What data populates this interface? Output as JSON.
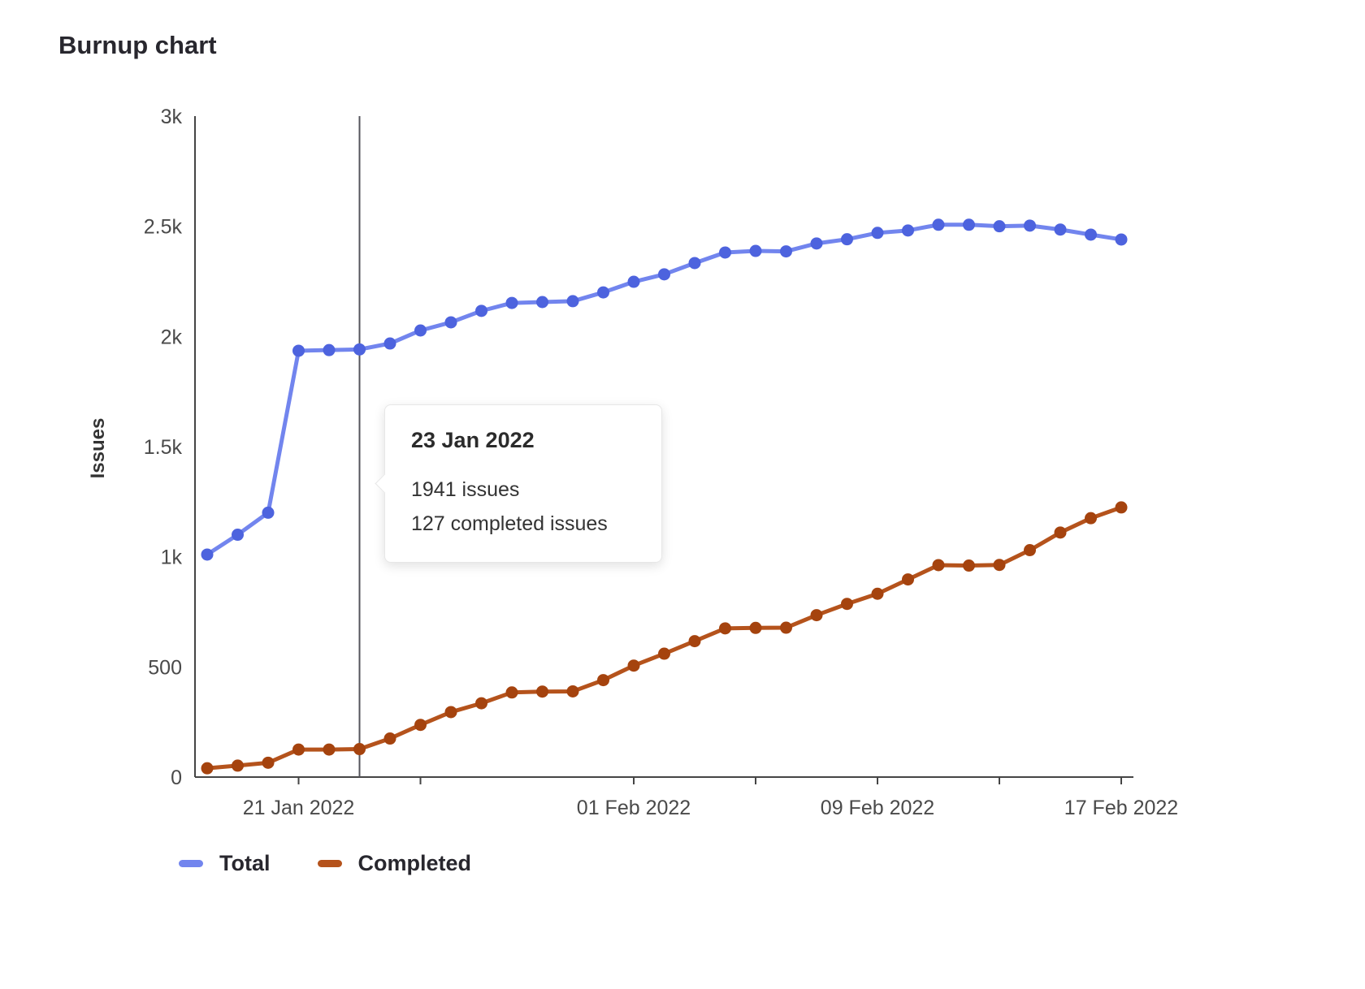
{
  "chart_data": {
    "type": "line",
    "title": "Burnup chart",
    "xlabel": "",
    "ylabel": "Issues",
    "ylim": [
      0,
      3000
    ],
    "grid": false,
    "legend_position": "bottom",
    "y_ticks": [
      "0",
      "500",
      "1k",
      "1.5k",
      "2k",
      "2.5k",
      "3k"
    ],
    "x_ticks": [
      {
        "index": 3,
        "label": "21 Jan 2022"
      },
      {
        "index": 7,
        "label": ""
      },
      {
        "index": 14,
        "label": "01 Feb 2022"
      },
      {
        "index": 18,
        "label": ""
      },
      {
        "index": 22,
        "label": "09 Feb 2022"
      },
      {
        "index": 26,
        "label": ""
      },
      {
        "index": 30,
        "label": "17 Feb 2022"
      }
    ],
    "x": [
      "18 Jan 2022",
      "19 Jan 2022",
      "20 Jan 2022",
      "21 Jan 2022",
      "22 Jan 2022",
      "23 Jan 2022",
      "24 Jan 2022",
      "25 Jan 2022",
      "26 Jan 2022",
      "27 Jan 2022",
      "28 Jan 2022",
      "29 Jan 2022",
      "30 Jan 2022",
      "31 Jan 2022",
      "01 Feb 2022",
      "02 Feb 2022",
      "03 Feb 2022",
      "04 Feb 2022",
      "05 Feb 2022",
      "06 Feb 2022",
      "07 Feb 2022",
      "08 Feb 2022",
      "09 Feb 2022",
      "10 Feb 2022",
      "11 Feb 2022",
      "12 Feb 2022",
      "13 Feb 2022",
      "14 Feb 2022",
      "15 Feb 2022",
      "16 Feb 2022",
      "17 Feb 2022"
    ],
    "series": [
      {
        "name": "Total",
        "color": "#7285ee",
        "dot_color": "#4d63de",
        "values": [
          1010,
          1100,
          1200,
          1935,
          1938,
          1941,
          1968,
          2027,
          2064,
          2116,
          2152,
          2156,
          2160,
          2200,
          2248,
          2282,
          2333,
          2381,
          2388,
          2386,
          2422,
          2441,
          2470,
          2481,
          2507,
          2507,
          2500,
          2503,
          2485,
          2462,
          2440
        ]
      },
      {
        "name": "Completed",
        "color": "#b5531c",
        "dot_color": "#a5430e",
        "values": [
          40,
          52,
          65,
          125,
          125,
          127,
          175,
          237,
          295,
          335,
          384,
          388,
          389,
          440,
          506,
          560,
          617,
          675,
          677,
          678,
          735,
          786,
          832,
          897,
          962,
          960,
          963,
          1030,
          1110,
          1175,
          1224
        ]
      }
    ],
    "hover": {
      "x_index": 5,
      "label": "23 Jan 2022"
    },
    "axis_color": "#454545",
    "hover_line_color": "#54545c"
  },
  "tooltip": {
    "title": "23 Jan 2022",
    "line1": "1941 issues",
    "line2": "127 completed issues"
  },
  "legend": {
    "items": [
      {
        "label": "Total",
        "color": "#7285ee"
      },
      {
        "label": "Completed",
        "color": "#b5531c"
      }
    ]
  }
}
